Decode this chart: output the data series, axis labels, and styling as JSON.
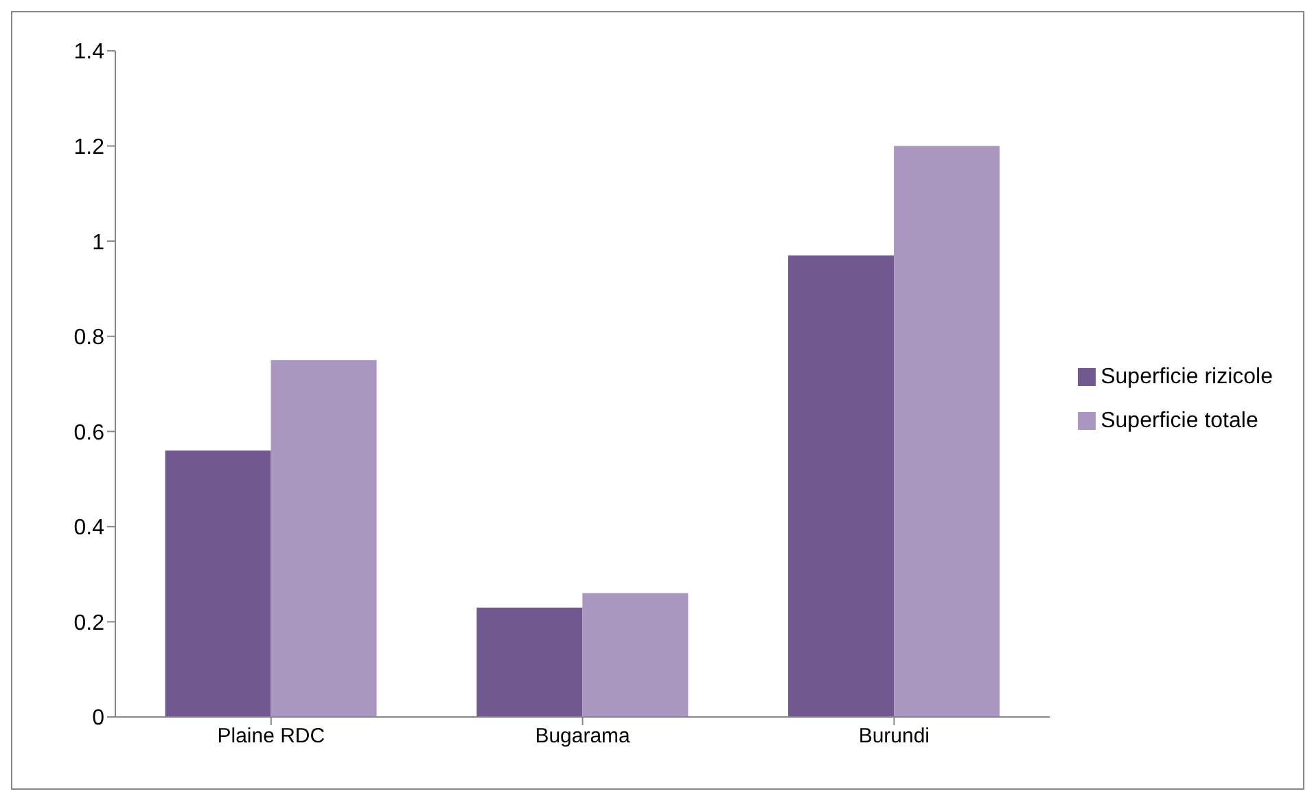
{
  "chart_data": {
    "type": "bar",
    "categories": [
      "Plaine RDC",
      "Bugarama",
      "Burundi"
    ],
    "series": [
      {
        "name": "Superficie rizicole",
        "color": "#71588f",
        "values": [
          0.56,
          0.23,
          0.97
        ]
      },
      {
        "name": "Superficie totale",
        "color": "#a997c0",
        "values": [
          0.75,
          0.26,
          1.2
        ]
      }
    ],
    "ylim": [
      0,
      1.4
    ],
    "yticks": [
      0,
      0.2,
      0.4,
      0.6,
      0.8,
      1,
      1.2,
      1.4
    ],
    "grid": false,
    "legend": "right"
  }
}
